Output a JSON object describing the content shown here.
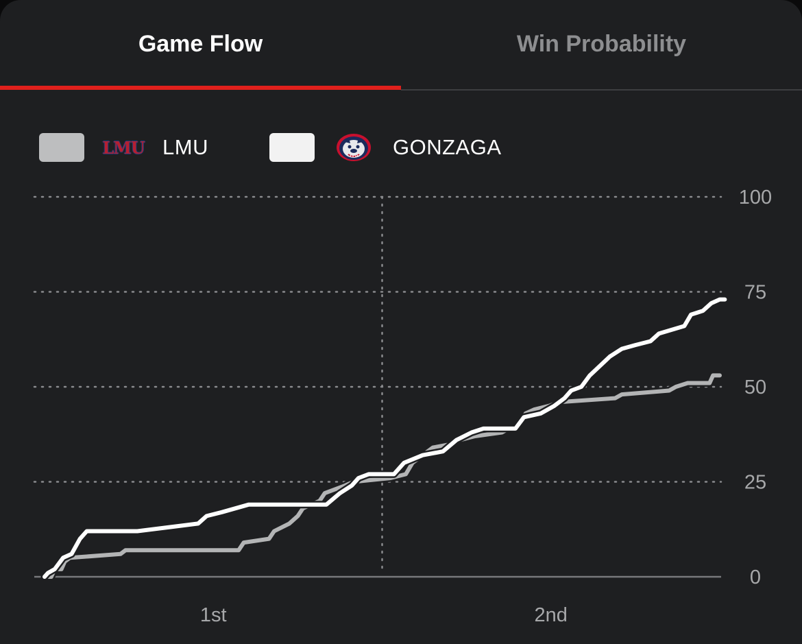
{
  "tabs": [
    {
      "label": "Game Flow",
      "active": true
    },
    {
      "label": "Win Probability",
      "active": false
    }
  ],
  "legend": [
    {
      "team": "LMU",
      "logo_text": "LMU",
      "icon": "lmu-logo-icon",
      "color": "#bdbebf"
    },
    {
      "team": "GONZAGA",
      "icon": "gonzaga-bulldog-icon",
      "color": "#f2f2f2"
    }
  ],
  "chart_data": {
    "type": "line",
    "xlabel": "",
    "ylabel": "",
    "x_ticks": [
      {
        "label": "1st",
        "x": 10
      },
      {
        "label": "2nd",
        "x": 30
      }
    ],
    "halftime_x": 20,
    "x_range": [
      0,
      40
    ],
    "ylim": [
      0,
      100
    ],
    "y_ticks": [
      0,
      25,
      50,
      75,
      100
    ],
    "grid": true,
    "legend_position": "top-left",
    "series": [
      {
        "name": "LMU",
        "color": "#b3b4b5",
        "points": [
          [
            0.0,
            0
          ],
          [
            0.4,
            0
          ],
          [
            0.6,
            2
          ],
          [
            1.0,
            2
          ],
          [
            1.2,
            4
          ],
          [
            1.5,
            5
          ],
          [
            4.5,
            6
          ],
          [
            4.8,
            7
          ],
          [
            11.5,
            7
          ],
          [
            11.8,
            9
          ],
          [
            13.3,
            10
          ],
          [
            13.6,
            12
          ],
          [
            14.5,
            14
          ],
          [
            15.0,
            16
          ],
          [
            15.3,
            18
          ],
          [
            16.3,
            20
          ],
          [
            16.6,
            22
          ],
          [
            17.8,
            24
          ],
          [
            18.3,
            25
          ],
          [
            20.5,
            26
          ],
          [
            21.4,
            27
          ],
          [
            21.8,
            30
          ],
          [
            22.4,
            32
          ],
          [
            23.0,
            34
          ],
          [
            24.2,
            35
          ],
          [
            24.6,
            36
          ],
          [
            25.5,
            37
          ],
          [
            27.1,
            38
          ],
          [
            27.5,
            39
          ],
          [
            28.0,
            39
          ],
          [
            28.5,
            43
          ],
          [
            29.0,
            44
          ],
          [
            29.9,
            45
          ],
          [
            30.5,
            46
          ],
          [
            33.8,
            47
          ],
          [
            34.2,
            48
          ],
          [
            37.0,
            49
          ],
          [
            37.4,
            50
          ],
          [
            38.1,
            51
          ],
          [
            39.4,
            51
          ],
          [
            39.6,
            53
          ],
          [
            40.0,
            53
          ]
        ]
      },
      {
        "name": "GONZAGA",
        "color": "#ffffff",
        "points": [
          [
            0.0,
            0
          ],
          [
            0.2,
            1
          ],
          [
            0.6,
            2
          ],
          [
            1.1,
            5
          ],
          [
            1.6,
            6
          ],
          [
            2.1,
            10
          ],
          [
            2.5,
            12
          ],
          [
            5.5,
            12
          ],
          [
            9.1,
            14
          ],
          [
            9.6,
            16
          ],
          [
            10.5,
            17
          ],
          [
            12.1,
            19
          ],
          [
            16.7,
            19
          ],
          [
            17.5,
            22
          ],
          [
            18.2,
            24
          ],
          [
            18.6,
            26
          ],
          [
            19.2,
            27
          ],
          [
            20.7,
            27
          ],
          [
            21.3,
            30
          ],
          [
            22.4,
            32
          ],
          [
            23.6,
            33
          ],
          [
            24.4,
            36
          ],
          [
            25.3,
            38
          ],
          [
            26.0,
            39
          ],
          [
            27.9,
            39
          ],
          [
            28.4,
            42
          ],
          [
            29.4,
            43
          ],
          [
            30.2,
            45
          ],
          [
            30.8,
            47
          ],
          [
            31.2,
            49
          ],
          [
            31.8,
            50
          ],
          [
            32.3,
            53
          ],
          [
            33.5,
            58
          ],
          [
            34.2,
            60
          ],
          [
            35.0,
            61
          ],
          [
            35.9,
            62
          ],
          [
            36.4,
            64
          ],
          [
            37.9,
            66
          ],
          [
            38.3,
            69
          ],
          [
            39.0,
            70
          ],
          [
            39.5,
            72
          ],
          [
            40.0,
            73
          ],
          [
            40.3,
            73
          ]
        ]
      }
    ]
  }
}
